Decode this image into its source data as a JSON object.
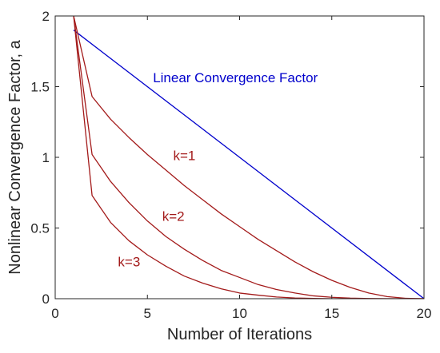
{
  "chart_data": {
    "type": "line",
    "title": "",
    "xlabel": "Number of Iterations",
    "ylabel": "Nonlinear Convergence Factor, a",
    "xlim": [
      0,
      20
    ],
    "ylim": [
      0,
      2
    ],
    "xticks": [
      0,
      5,
      10,
      15,
      20
    ],
    "xtick_labels": [
      "0",
      "5",
      "10",
      "15",
      "20"
    ],
    "yticks": [
      0,
      0.5,
      1,
      1.5,
      2
    ],
    "ytick_labels": [
      "0",
      "0.5",
      "1",
      "1.5",
      "2"
    ],
    "grid": false,
    "colors": {
      "linear": "#0000cc",
      "nonlinear": "#a31a1a",
      "axis": "#262626"
    },
    "series": [
      {
        "name": "Linear Convergence Factor",
        "color": "#0000cc",
        "x": [
          1,
          20
        ],
        "y": [
          1.9,
          0
        ]
      },
      {
        "name": "k=1",
        "color": "#a31a1a",
        "x": [
          1,
          2,
          3,
          4,
          5,
          6,
          7,
          8,
          9,
          10,
          11,
          12,
          13,
          14,
          15,
          16,
          17,
          18,
          19,
          20
        ],
        "y": [
          2.0,
          1.43,
          1.27,
          1.14,
          1.02,
          0.91,
          0.8,
          0.7,
          0.6,
          0.51,
          0.42,
          0.34,
          0.26,
          0.19,
          0.13,
          0.08,
          0.04,
          0.015,
          0.003,
          0
        ]
      },
      {
        "name": "k=2",
        "color": "#a31a1a",
        "x": [
          1,
          2,
          3,
          4,
          5,
          6,
          7,
          8,
          9,
          10,
          11,
          12,
          13,
          14,
          15,
          16,
          17,
          18,
          19,
          20
        ],
        "y": [
          2.0,
          1.02,
          0.83,
          0.68,
          0.55,
          0.44,
          0.35,
          0.27,
          0.2,
          0.15,
          0.1,
          0.065,
          0.04,
          0.02,
          0.01,
          0.004,
          0.001,
          0,
          0,
          0
        ]
      },
      {
        "name": "k=3",
        "color": "#a31a1a",
        "x": [
          1,
          2,
          3,
          4,
          5,
          6,
          7,
          8,
          9,
          10,
          11,
          12,
          13,
          14,
          15,
          16,
          17,
          18,
          19,
          20
        ],
        "y": [
          2.0,
          0.73,
          0.54,
          0.41,
          0.31,
          0.23,
          0.16,
          0.11,
          0.07,
          0.04,
          0.025,
          0.012,
          0.005,
          0.002,
          0,
          0,
          0,
          0,
          0,
          0
        ]
      }
    ],
    "annotations": [
      {
        "text": "Linear Convergence Factor",
        "x": 5.3,
        "y": 1.53,
        "color": "#0000cc"
      },
      {
        "text": "k=1",
        "x": 6.4,
        "y": 0.98,
        "color": "#a31a1a"
      },
      {
        "text": "k=2",
        "x": 5.8,
        "y": 0.55,
        "color": "#a31a1a"
      },
      {
        "text": "k=3",
        "x": 3.4,
        "y": 0.23,
        "color": "#a31a1a"
      }
    ]
  }
}
